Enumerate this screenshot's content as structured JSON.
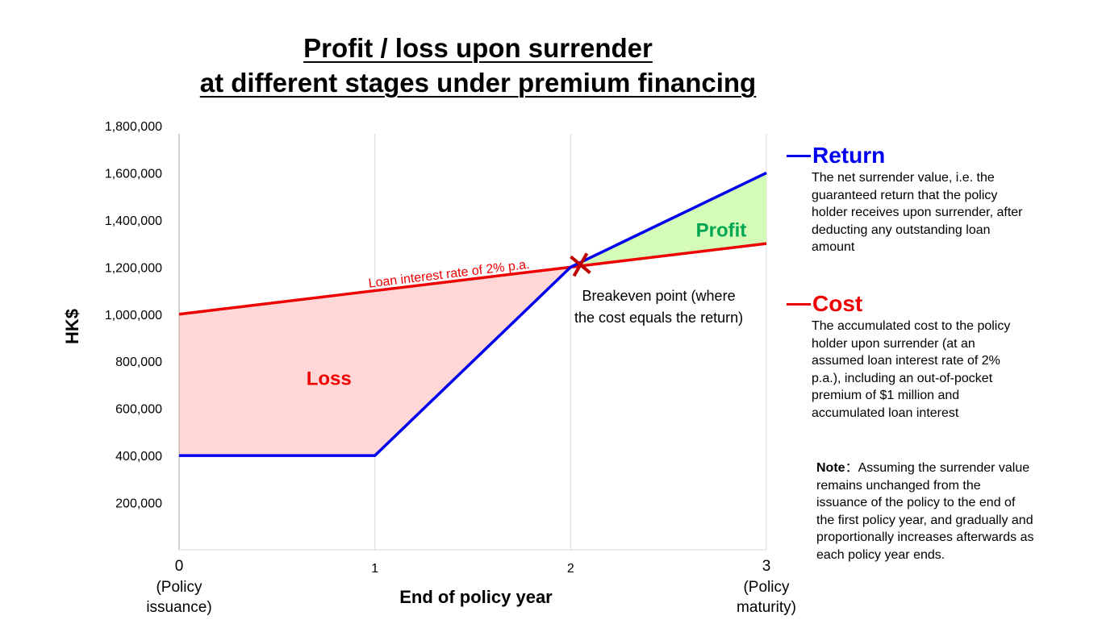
{
  "title_line1": "Profit / loss upon surrender",
  "title_line2": "at different stages under premium financing",
  "colors": {
    "return": "#0000ee",
    "cost": "#ee0000",
    "loss_fill": "#ffd7d7",
    "profit_fill": "#d4fbb8",
    "profit_text": "#00a651",
    "breakeven_marker": "#c00000"
  },
  "chart_data": {
    "type": "line",
    "xlabel": "End of policy year",
    "ylabel": "HK$",
    "x": [
      0,
      1,
      2,
      3
    ],
    "xlim": [
      0,
      3
    ],
    "ylim": [
      0,
      1800000
    ],
    "x_tick_labels": [
      {
        "value": 0,
        "label": "0",
        "sub": [
          "(Policy",
          "issuance)"
        ]
      },
      {
        "value": 1,
        "label": "1",
        "sub": []
      },
      {
        "value": 2,
        "label": "2",
        "sub": []
      },
      {
        "value": 3,
        "label": "3",
        "sub": [
          "(Policy",
          "maturity)"
        ]
      }
    ],
    "y_ticks": [
      200000,
      400000,
      600000,
      800000,
      1000000,
      1200000,
      1400000,
      1600000,
      1800000
    ],
    "y_tick_labels": [
      "200,000",
      "400,000",
      "600,000",
      "800,000",
      "1,000,000",
      "1,200,000",
      "1,400,000",
      "1,600,000",
      "1,800,000"
    ],
    "series": [
      {
        "name": "Return",
        "key": "return",
        "values": [
          400000,
          400000,
          1200000,
          1600000
        ]
      },
      {
        "name": "Cost",
        "key": "cost",
        "values": [
          1000000,
          1100000,
          1200000,
          1300000
        ]
      }
    ],
    "breakeven": {
      "x": 2.05,
      "y": 1210000,
      "label_line1": "Breakeven point (where",
      "label_line2": "the cost equals the return)"
    },
    "annotations": {
      "loan_line_label": "Loan interest rate of 2% p.a.",
      "loss_label": "Loss",
      "profit_label": "Profit"
    },
    "grid": {
      "vertical": true,
      "horizontal": false
    }
  },
  "legend": {
    "return": {
      "title": "Return",
      "desc": "The net surrender value, i.e. the guaranteed return that the policy holder receives upon surrender, after deducting any outstanding loan amount"
    },
    "cost": {
      "title": "Cost",
      "desc": "The accumulated cost to the policy holder upon surrender (at an assumed loan interest rate of 2% p.a.), including an out-of-pocket premium of $1 million and accumulated loan interest"
    }
  },
  "note": {
    "label": "Note",
    "separator": "：",
    "text": "Assuming the surrender value remains unchanged from the issuance of the policy to the end of the first policy year, and gradually and proportionally increases afterwards as each policy year ends."
  }
}
